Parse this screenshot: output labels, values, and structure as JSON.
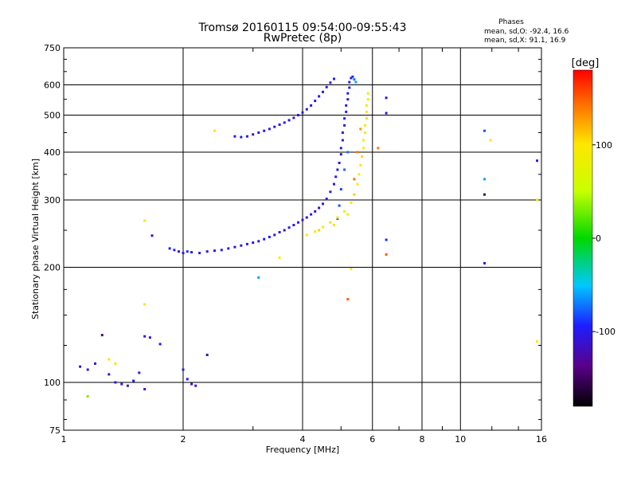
{
  "chart_data": {
    "type": "scatter",
    "title": "Tromsø 20160115 09:54:00-09:55:43",
    "subtitle": "RwPretec (8p)",
    "xlabel": "Frequency [MHz]",
    "ylabel": "Stationary phase Virtual Height [km]",
    "x_scale": "log",
    "y_scale": "log",
    "xlim": [
      1,
      16
    ],
    "ylim": [
      75,
      750
    ],
    "x_ticks": [
      1,
      2,
      4,
      6,
      8,
      10,
      16
    ],
    "y_ticks": [
      75,
      100,
      200,
      300,
      400,
      500,
      600,
      750
    ],
    "grid": true,
    "phase_stats": {
      "title": "Phases",
      "line_o": "mean, sd,O: -92.4, 16.6",
      "line_x": "mean, sd,X:  91.1, 16.9"
    },
    "colorbar": {
      "label": "[deg]",
      "range": [
        -180,
        180
      ],
      "ticks": [
        100,
        0,
        -100
      ],
      "colormap": "rainbow"
    },
    "series": [
      {
        "mode": "O",
        "points": [
          [
            1.85,
            224,
            -100
          ],
          [
            1.9,
            222,
            -95
          ],
          [
            1.95,
            220,
            -105
          ],
          [
            2.0,
            218,
            -100
          ],
          [
            2.05,
            220,
            -90
          ],
          [
            2.1,
            219,
            -100
          ],
          [
            2.2,
            218,
            -95
          ],
          [
            2.3,
            220,
            -110
          ],
          [
            2.4,
            221,
            -100
          ],
          [
            2.5,
            222,
            -95
          ],
          [
            2.6,
            224,
            -100
          ],
          [
            2.7,
            226,
            -105
          ],
          [
            2.8,
            228,
            -100
          ],
          [
            2.9,
            230,
            -95
          ],
          [
            3.0,
            232,
            -110
          ],
          [
            3.1,
            234,
            -100
          ],
          [
            3.2,
            237,
            -100
          ],
          [
            3.3,
            240,
            -95
          ],
          [
            3.4,
            243,
            -105
          ],
          [
            3.5,
            247,
            -100
          ],
          [
            3.6,
            250,
            -110
          ],
          [
            3.7,
            254,
            -100
          ],
          [
            3.8,
            258,
            -95
          ],
          [
            3.9,
            262,
            -100
          ],
          [
            4.0,
            266,
            -105
          ],
          [
            4.1,
            270,
            -100
          ],
          [
            4.2,
            275,
            -95
          ],
          [
            4.3,
            280,
            -100
          ],
          [
            4.4,
            286,
            -110
          ],
          [
            4.5,
            293,
            -100
          ],
          [
            4.6,
            302,
            -95
          ],
          [
            4.7,
            315,
            -100
          ],
          [
            4.8,
            330,
            -105
          ],
          [
            4.85,
            345,
            -100
          ],
          [
            4.9,
            360,
            -95
          ],
          [
            4.95,
            375,
            -100
          ],
          [
            5.0,
            395,
            -110
          ],
          [
            5.0,
            410,
            -100
          ],
          [
            5.05,
            430,
            -95
          ],
          [
            5.05,
            450,
            -100
          ],
          [
            5.1,
            470,
            -105
          ],
          [
            5.1,
            490,
            -100
          ],
          [
            5.15,
            510,
            -95
          ],
          [
            5.15,
            530,
            -100
          ],
          [
            5.2,
            550,
            -110
          ],
          [
            5.2,
            570,
            -100
          ],
          [
            5.25,
            590,
            -95
          ],
          [
            5.25,
            610,
            -100
          ],
          [
            5.3,
            625,
            -105
          ],
          [
            5.35,
            630,
            -90
          ],
          [
            5.4,
            620,
            -70
          ],
          [
            5.45,
            610,
            -60
          ],
          [
            4.9,
            268,
            -80
          ],
          [
            4.95,
            290,
            -80
          ],
          [
            5.0,
            320,
            -85
          ],
          [
            5.1,
            360,
            -75
          ],
          [
            5.2,
            400,
            -70
          ],
          [
            2.7,
            440,
            -100
          ],
          [
            2.8,
            438,
            -95
          ],
          [
            2.9,
            440,
            -100
          ],
          [
            3.0,
            445,
            -110
          ],
          [
            3.1,
            450,
            -100
          ],
          [
            3.2,
            455,
            -95
          ],
          [
            3.3,
            460,
            -100
          ],
          [
            3.4,
            466,
            -105
          ],
          [
            3.5,
            472,
            -100
          ],
          [
            3.6,
            478,
            -95
          ],
          [
            3.7,
            485,
            -100
          ],
          [
            3.8,
            492,
            -110
          ],
          [
            3.9,
            500,
            -100
          ],
          [
            4.0,
            508,
            -95
          ],
          [
            4.1,
            518,
            -100
          ],
          [
            4.2,
            530,
            -105
          ],
          [
            4.3,
            545,
            -100
          ],
          [
            4.4,
            560,
            -95
          ],
          [
            4.5,
            575,
            -100
          ],
          [
            4.6,
            592,
            -110
          ],
          [
            4.7,
            608,
            -100
          ],
          [
            4.8,
            622,
            -95
          ],
          [
            1.1,
            110,
            -110
          ],
          [
            1.15,
            108,
            -100
          ],
          [
            1.2,
            112,
            -105
          ],
          [
            1.3,
            105,
            -110
          ],
          [
            1.35,
            100,
            -105
          ],
          [
            1.4,
            99,
            -100
          ],
          [
            1.45,
            98,
            -110
          ],
          [
            1.5,
            101,
            -100
          ],
          [
            1.55,
            106,
            -95
          ],
          [
            1.6,
            132,
            -100
          ],
          [
            1.65,
            131,
            -110
          ],
          [
            1.75,
            126,
            -95
          ],
          [
            2.0,
            108,
            -100
          ],
          [
            2.05,
            102,
            -95
          ],
          [
            2.1,
            99,
            -110
          ],
          [
            2.15,
            98,
            -100
          ],
          [
            2.3,
            118,
            -120
          ],
          [
            1.25,
            133,
            -140
          ],
          [
            1.6,
            96,
            -100
          ],
          [
            1.67,
            242,
            -120
          ],
          [
            3.1,
            188,
            -60
          ],
          [
            6.5,
            555,
            -115
          ],
          [
            6.5,
            506,
            -105
          ],
          [
            6.5,
            236,
            -90
          ],
          [
            11.5,
            455,
            -80
          ],
          [
            11.5,
            340,
            -60
          ],
          [
            11.5,
            310,
            -150
          ],
          [
            11.5,
            205,
            -100
          ],
          [
            15.6,
            380,
            -100
          ]
        ]
      },
      {
        "mode": "X",
        "points": [
          [
            4.1,
            243,
            100
          ],
          [
            4.3,
            248,
            95
          ],
          [
            4.5,
            255,
            100
          ],
          [
            4.7,
            262,
            105
          ],
          [
            4.9,
            270,
            100
          ],
          [
            5.1,
            280,
            95
          ],
          [
            5.3,
            295,
            100
          ],
          [
            5.4,
            310,
            110
          ],
          [
            5.5,
            330,
            100
          ],
          [
            5.55,
            350,
            95
          ],
          [
            5.6,
            370,
            100
          ],
          [
            5.65,
            390,
            105
          ],
          [
            5.7,
            410,
            100
          ],
          [
            5.7,
            430,
            90
          ],
          [
            5.75,
            450,
            95
          ],
          [
            5.75,
            470,
            100
          ],
          [
            5.8,
            490,
            105
          ],
          [
            5.8,
            510,
            95
          ],
          [
            5.8,
            530,
            100
          ],
          [
            5.85,
            550,
            80
          ],
          [
            5.85,
            570,
            60
          ],
          [
            5.6,
            460,
            130
          ],
          [
            5.5,
            400,
            140
          ],
          [
            5.4,
            340,
            145
          ],
          [
            4.4,
            250,
            110
          ],
          [
            4.8,
            258,
            100
          ],
          [
            5.2,
            275,
            95
          ],
          [
            1.3,
            115,
            100
          ],
          [
            1.35,
            112,
            95
          ],
          [
            1.6,
            265,
            100
          ],
          [
            1.6,
            160,
            95
          ],
          [
            2.4,
            455,
            100
          ],
          [
            3.5,
            212,
            95
          ],
          [
            5.3,
            198,
            100
          ],
          [
            5.2,
            165,
            150
          ],
          [
            6.2,
            410,
            140
          ],
          [
            6.5,
            216,
            150
          ],
          [
            11.9,
            430,
            100
          ],
          [
            15.6,
            300,
            100
          ],
          [
            15.6,
            128,
            95
          ],
          [
            1.15,
            92,
            30
          ]
        ]
      }
    ]
  }
}
